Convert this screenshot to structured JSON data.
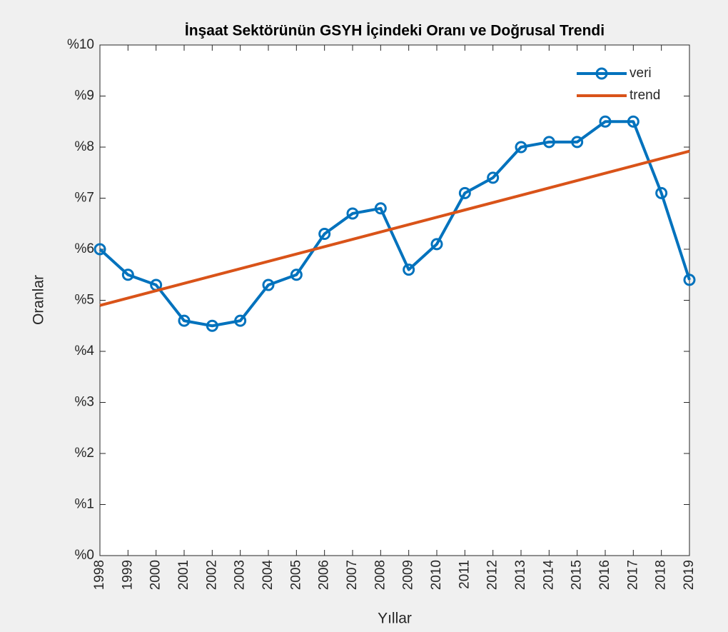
{
  "chart_data": {
    "type": "line",
    "title": "İnşaat Sektörünün GSYH İçindeki Oranı ve Doğrusal Trendi",
    "xlabel": "Yıllar",
    "ylabel": "Oranlar",
    "x": [
      1998,
      1999,
      2000,
      2001,
      2002,
      2003,
      2004,
      2005,
      2006,
      2007,
      2008,
      2009,
      2010,
      2011,
      2012,
      2013,
      2014,
      2015,
      2016,
      2017,
      2018,
      2019
    ],
    "series": [
      {
        "name": "veri",
        "color": "#0072bd",
        "marker": "circle",
        "values": [
          6.0,
          5.5,
          5.3,
          4.6,
          4.5,
          4.6,
          5.3,
          5.5,
          6.3,
          6.7,
          6.8,
          5.6,
          6.1,
          7.1,
          7.4,
          8.0,
          8.1,
          8.1,
          8.5,
          8.5,
          7.1,
          5.4
        ]
      },
      {
        "name": "trend",
        "color": "#d95319",
        "x": [
          1998,
          2019
        ],
        "values": [
          4.9,
          7.92
        ]
      }
    ],
    "xlim": [
      1998,
      2019
    ],
    "xticks": [
      1998,
      1999,
      2000,
      2001,
      2002,
      2003,
      2004,
      2005,
      2006,
      2007,
      2008,
      2009,
      2010,
      2011,
      2012,
      2013,
      2014,
      2015,
      2016,
      2017,
      2018,
      2019
    ],
    "ylim": [
      0,
      10
    ],
    "yticks": [
      {
        "value": 0,
        "label": "%0"
      },
      {
        "value": 1,
        "label": "%1"
      },
      {
        "value": 2,
        "label": "%2"
      },
      {
        "value": 3,
        "label": "%3"
      },
      {
        "value": 4,
        "label": "%4"
      },
      {
        "value": 5,
        "label": "%5"
      },
      {
        "value": 6,
        "label": "%6"
      },
      {
        "value": 7,
        "label": "%7"
      },
      {
        "value": 8,
        "label": "%8"
      },
      {
        "value": 9,
        "label": "%9"
      },
      {
        "value": 10,
        "label": "%10"
      }
    ],
    "legend": "top-right",
    "grid": false
  }
}
